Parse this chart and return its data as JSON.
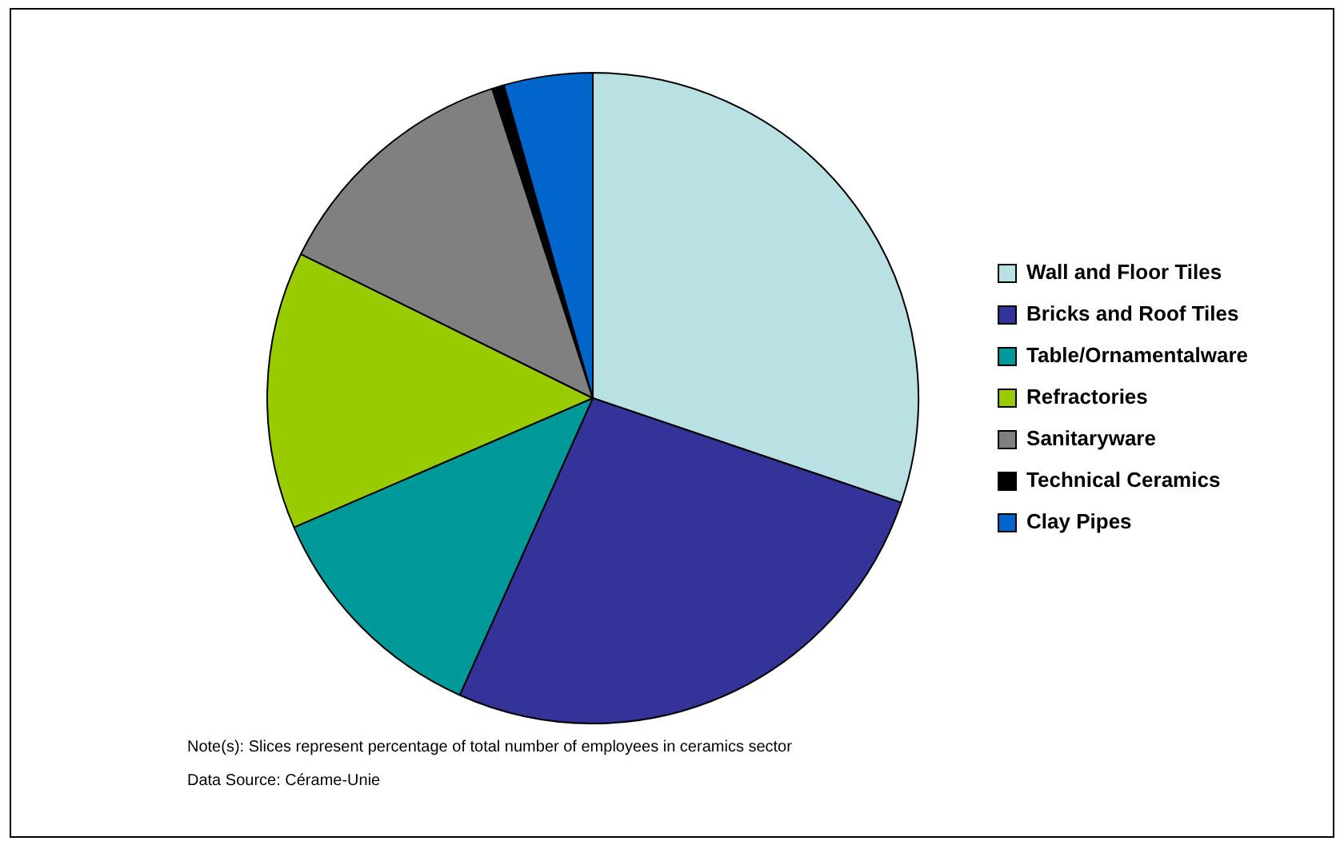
{
  "chart_data": {
    "type": "pie",
    "categories": [
      "Wall and Floor Tiles",
      "Bricks and Roof Tiles",
      "Table/Ornamentalware",
      "Refractories",
      "Sanitaryware",
      "Technical Ceramics",
      "Clay Pipes"
    ],
    "values": [
      30.2,
      26.5,
      11.8,
      13.8,
      12.7,
      0.6,
      4.4
    ],
    "colors": [
      "#b9e0e3",
      "#333399",
      "#009999",
      "#99cc00",
      "#808080",
      "#000000",
      "#0066cc"
    ],
    "legend": "right",
    "annotations": [
      "Note(s): Slices represent percentage of total number of employees in ceramics sector",
      "Data Source: Cérame-Unie"
    ]
  }
}
